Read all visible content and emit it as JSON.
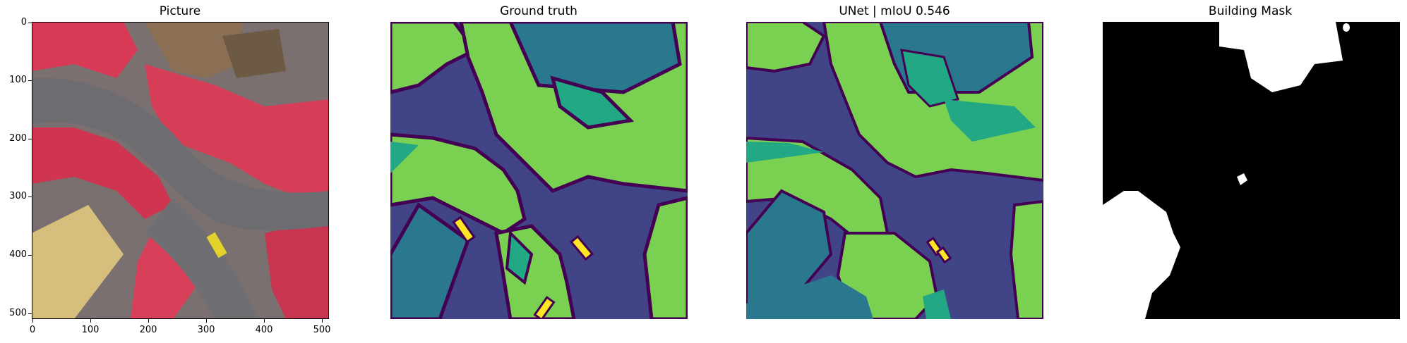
{
  "panels": [
    {
      "title": "Picture"
    },
    {
      "title": "Ground truth"
    },
    {
      "title": "UNet | mIoU 0.546"
    },
    {
      "title": "Building Mask"
    }
  ],
  "axes": {
    "y_ticks": [
      "0",
      "100",
      "200",
      "300",
      "400",
      "500"
    ],
    "x_ticks": [
      "0",
      "100",
      "200",
      "300",
      "400",
      "500"
    ]
  },
  "colors": {
    "background_class": "#414487",
    "vegetation": "#7ad151",
    "building": "#2a788e",
    "tree": "#22a884",
    "car": "#fde725",
    "boundary": "#440154",
    "mask_fg": "#ffffff",
    "mask_bg": "#000000",
    "photo_tree": "#e0405a",
    "photo_road": "#6e6e70",
    "photo_roof": "#d9c07a"
  }
}
